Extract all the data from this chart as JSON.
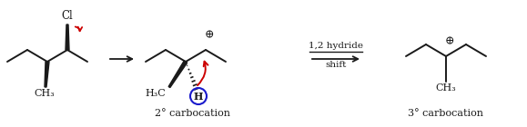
{
  "bg_color": "#ffffff",
  "line_color": "#1a1a1a",
  "red_color": "#cc0000",
  "blue_color": "#1a1acc",
  "figsize": [
    5.79,
    1.4
  ],
  "dpi": 100,
  "mol1_label_Cl": "Cl",
  "mol1_label_CH3": "CH₃",
  "mol2_label_plus": "⊕",
  "mol2_label_H3C": "H₃C",
  "mol2_label_H": "H",
  "mol2_label_2deg": "2° carbocation",
  "arrow_label_top": "1,2 hydride",
  "arrow_label_bot": "shift",
  "mol3_label_plus": "⊕",
  "mol3_label_CH3": "CH₃",
  "mol3_label_3deg": "3° carbocation"
}
